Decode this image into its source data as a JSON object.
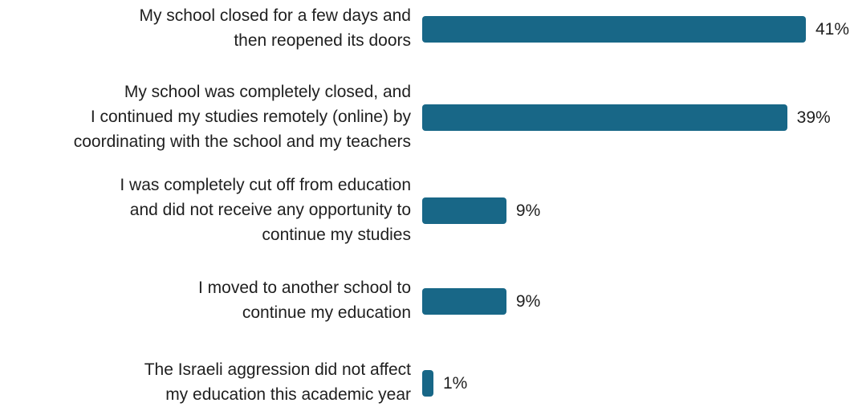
{
  "chart_data": {
    "type": "bar",
    "orientation": "horizontal",
    "categories": [
      [
        "My school closed for a few days and",
        "then reopened its doors"
      ],
      [
        "My school was completely closed, and",
        "I continued my studies remotely (online) by",
        "coordinating with the school and my teachers"
      ],
      [
        "I was completely cut off from education",
        "and did not receive any opportunity to",
        "continue my studies"
      ],
      [
        "I moved to another school to",
        "continue my education"
      ],
      [
        "The Israeli aggression did not affect",
        "my education this academic year"
      ]
    ],
    "values": [
      41,
      39,
      9,
      9,
      1
    ],
    "value_labels": [
      "41%",
      "39%",
      "9%",
      "9%",
      "1%"
    ],
    "xlim": [
      0,
      41
    ],
    "bar_color": "#186787",
    "grid": false,
    "legend": "none"
  }
}
